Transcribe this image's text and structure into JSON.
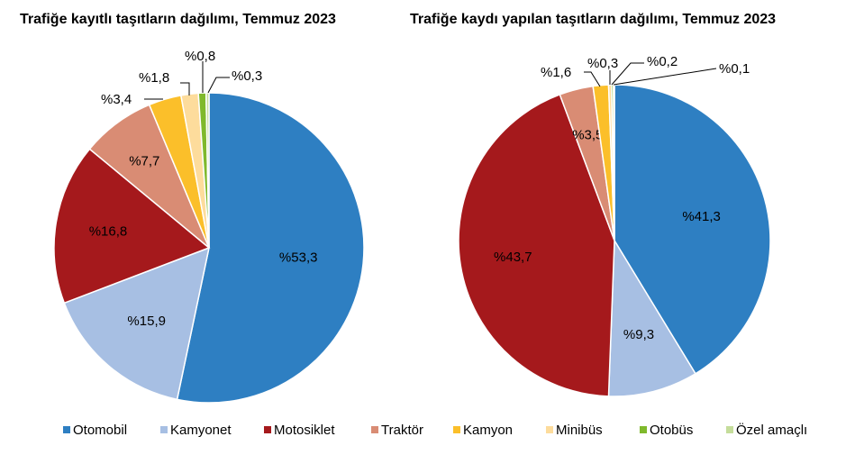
{
  "colors": {
    "otomobil": "#2e7fc2",
    "kamyonet": "#a7bfe3",
    "motosiklet": "#a5191c",
    "traktor": "#d98c74",
    "kamyon": "#fbbf2a",
    "minibus": "#fddc9c",
    "otobus": "#7fb92c",
    "ozel": "#c5dd9b"
  },
  "legend": [
    {
      "key": "otomobil",
      "label": "Otomobil"
    },
    {
      "key": "kamyonet",
      "label": "Kamyonet"
    },
    {
      "key": "motosiklet",
      "label": "Motosiklet"
    },
    {
      "key": "traktor",
      "label": "Traktör"
    },
    {
      "key": "kamyon",
      "label": "Kamyon"
    },
    {
      "key": "minibus",
      "label": "Minibüs"
    },
    {
      "key": "otobus",
      "label": "Otobüs"
    },
    {
      "key": "ozel",
      "label": "Özel amaçlı"
    }
  ],
  "chart_data": [
    {
      "type": "pie",
      "title": "Trafiğe kayıtlı taşıtların dağılımı, Temmuz 2023",
      "legend_position": "bottom",
      "slices": [
        {
          "key": "otomobil",
          "value": 53.3,
          "label": "%53,3"
        },
        {
          "key": "kamyonet",
          "value": 15.9,
          "label": "%15,9"
        },
        {
          "key": "motosiklet",
          "value": 16.8,
          "label": "%16,8"
        },
        {
          "key": "traktor",
          "value": 7.7,
          "label": "%7,7"
        },
        {
          "key": "kamyon",
          "value": 3.4,
          "label": "%3,4"
        },
        {
          "key": "minibus",
          "value": 1.8,
          "label": "%1,8"
        },
        {
          "key": "otobus",
          "value": 0.8,
          "label": "%0,8"
        },
        {
          "key": "ozel",
          "value": 0.3,
          "label": "%0,3"
        }
      ]
    },
    {
      "type": "pie",
      "title": "Trafiğe kaydı yapılan taşıtların dağılımı, Temmuz 2023",
      "legend_position": "bottom",
      "slices": [
        {
          "key": "otomobil",
          "value": 41.3,
          "label": "%41,3"
        },
        {
          "key": "kamyonet",
          "value": 9.3,
          "label": "%9,3"
        },
        {
          "key": "motosiklet",
          "value": 43.7,
          "label": "%43,7"
        },
        {
          "key": "traktor",
          "value": 3.5,
          "label": "%3,5"
        },
        {
          "key": "kamyon",
          "value": 1.6,
          "label": "%1,6"
        },
        {
          "key": "minibus",
          "value": 0.3,
          "label": "%0,3"
        },
        {
          "key": "otobus",
          "value": 0.2,
          "label": "%0,2"
        },
        {
          "key": "ozel",
          "value": 0.1,
          "label": "%0,1"
        }
      ]
    }
  ]
}
